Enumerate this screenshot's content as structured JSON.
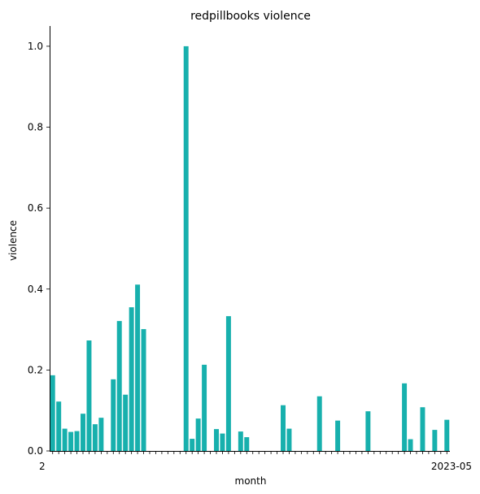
{
  "chart_data": {
    "type": "bar",
    "title": "redpillbooks violence",
    "xlabel": "month",
    "ylabel": "violence",
    "ylim": [
      0,
      1.05
    ],
    "yticks": [
      0.0,
      0.2,
      0.4,
      0.6,
      0.8,
      1.0
    ],
    "ytick_labels": [
      "0.0",
      "0.2",
      "0.4",
      "0.6",
      "0.8",
      "1.0"
    ],
    "grid": false,
    "legend": "none",
    "bar_color": "#17b0ad",
    "x_first_label": "2",
    "x_last_label": "2023-05",
    "values": [
      0.187,
      0.122,
      0.055,
      0.047,
      0.049,
      0.092,
      0.273,
      0.066,
      0.082,
      0,
      0.177,
      0.321,
      0.139,
      0.355,
      0.411,
      0.301,
      0,
      0,
      0,
      0,
      0,
      0,
      1.0,
      0.03,
      0.08,
      0.213,
      0,
      0.054,
      0.043,
      0.333,
      0,
      0.048,
      0.034,
      0,
      0,
      0,
      0,
      0,
      0.113,
      0.055,
      0,
      0,
      0,
      0,
      0.135,
      0,
      0,
      0.075,
      0,
      0,
      0,
      0,
      0.098,
      0,
      0,
      0,
      0,
      0,
      0.167,
      0.029,
      0,
      0.108,
      0,
      0.052,
      0,
      0.077
    ]
  }
}
